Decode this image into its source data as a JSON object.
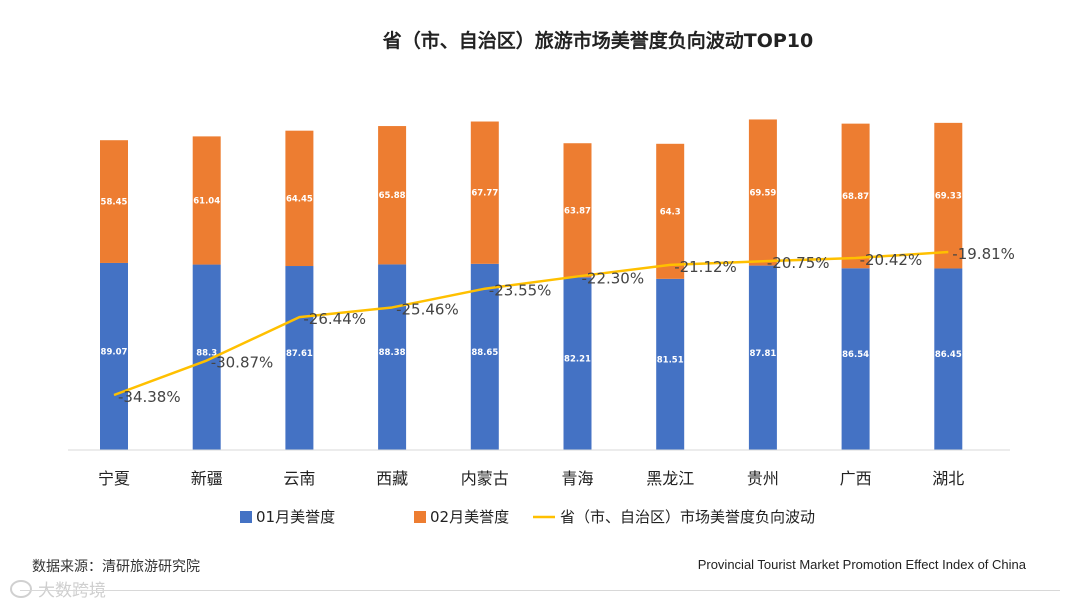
{
  "chart_data": {
    "type": "bar",
    "stacked": true,
    "title": "省（市、自治区）旅游市场美誉度负向波动TOP10",
    "categories": [
      "宁夏",
      "新疆",
      "云南",
      "西藏",
      "内蒙古",
      "青海",
      "黑龙江",
      "贵州",
      "广西",
      "湖北"
    ],
    "series": [
      {
        "name": "01月美誉度",
        "type": "bar",
        "color": "#4472C4",
        "values": [
          89.07,
          88.3,
          87.61,
          88.38,
          88.65,
          82.21,
          81.51,
          87.81,
          86.54,
          86.45
        ],
        "labels": [
          "89.07",
          "88.3",
          "87.61",
          "88.38",
          "88.65",
          "82.21",
          "81.51",
          "87.81",
          "86.54",
          "86.45"
        ]
      },
      {
        "name": "02月美誉度",
        "type": "bar",
        "color": "#ED7D31",
        "values": [
          58.45,
          61.04,
          64.45,
          65.88,
          67.77,
          63.87,
          64.3,
          69.59,
          68.87,
          69.33
        ],
        "labels": [
          "58.45",
          "61.04",
          "64.45",
          "65.88",
          "67.77",
          "63.87",
          "64.3",
          "69.59",
          "68.87",
          "69.33"
        ]
      },
      {
        "name": "省（市、自治区）市场美誉度负向波动",
        "type": "line",
        "color": "#FFC000",
        "values": [
          -34.38,
          -30.87,
          -26.44,
          -25.46,
          -23.55,
          -22.3,
          -21.12,
          -20.75,
          -20.42,
          -19.81
        ],
        "labels": [
          "-34.38%",
          "-30.87%",
          "-26.44%",
          "-25.46%",
          "-23.55%",
          "-22.30%",
          "-21.12%",
          "-20.75%",
          "-20.42%",
          "-19.81%"
        ]
      }
    ],
    "legend_position": "bottom",
    "grid": false
  },
  "footer": {
    "source": "数据来源：清研旅游研究院",
    "english_title": "Provincial Tourist Market Promotion Effect Index of China"
  },
  "watermark": {
    "text": "大数跨境"
  }
}
